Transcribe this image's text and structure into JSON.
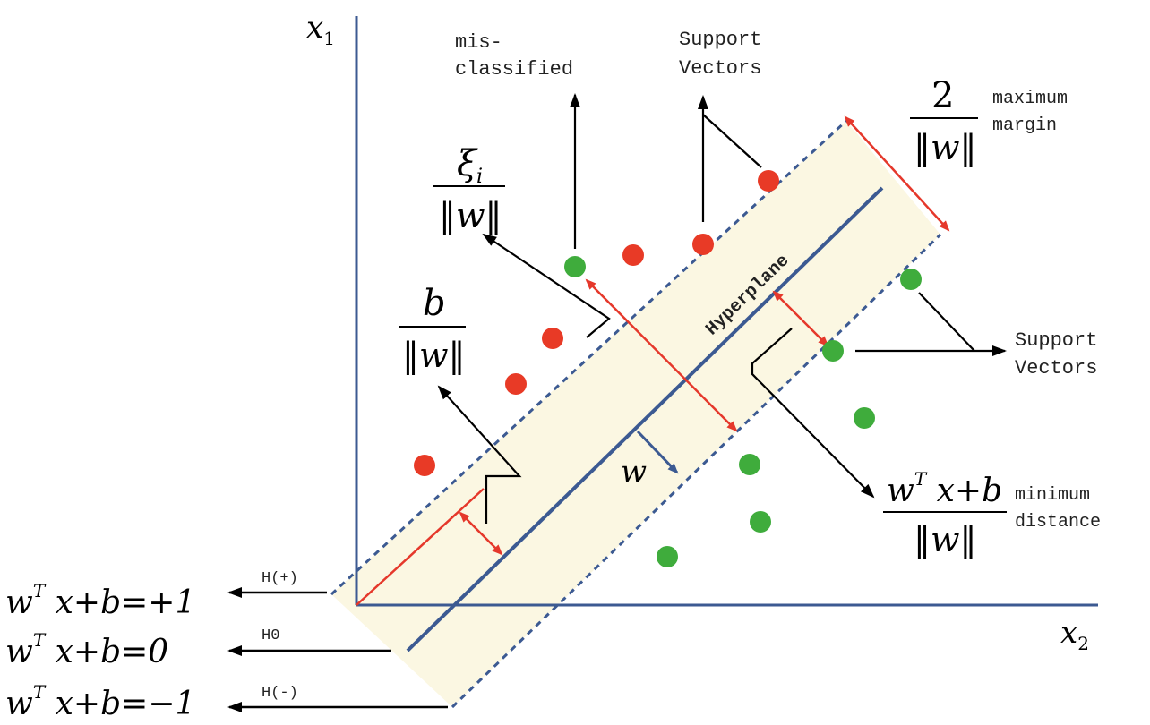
{
  "colors": {
    "axis": "#3c5a92",
    "band": "#fbf7e2",
    "red_arrow": "#e5382b",
    "red_point": "#e83a26",
    "green_point": "#3fac3c",
    "black": "#000000"
  },
  "axes": {
    "y_label": "x",
    "y_sub": "1",
    "x_label": "x",
    "x_sub": "2"
  },
  "labels": {
    "hyperplane": "Hyperplane",
    "misclassified_line1": "mis-",
    "misclassified_line2": "classified",
    "support_top_line1": "Support",
    "support_top_line2": "Vectors",
    "support_right_line1": "Support",
    "support_right_line2": "Vectors",
    "max_margin_line1": "maximum",
    "max_margin_line2": "margin",
    "min_distance_line1": "minimum",
    "min_distance_line2": "distance",
    "w_vector": "w",
    "h_plus": "H(+)",
    "h_zero": "H0",
    "h_minus": "H(-)"
  },
  "fractions": {
    "xi": {
      "num": "ξ",
      "num_sub": "i",
      "den": "‖w‖"
    },
    "b": {
      "num": "b",
      "den": "‖w‖"
    },
    "margin": {
      "num": "2",
      "den": "‖w‖"
    },
    "distance": {
      "num_w": "w",
      "num_sup": "T",
      "num_rest": " x+b",
      "den": "‖w‖"
    }
  },
  "equations": {
    "plus": {
      "w": "w",
      "sup": "T",
      "rest": " x+b=+1"
    },
    "zero": {
      "w": "w",
      "sup": "T",
      "rest": " x+b=0"
    },
    "minus": {
      "w": "w",
      "sup": "T",
      "rest": " x+b=−1"
    }
  }
}
